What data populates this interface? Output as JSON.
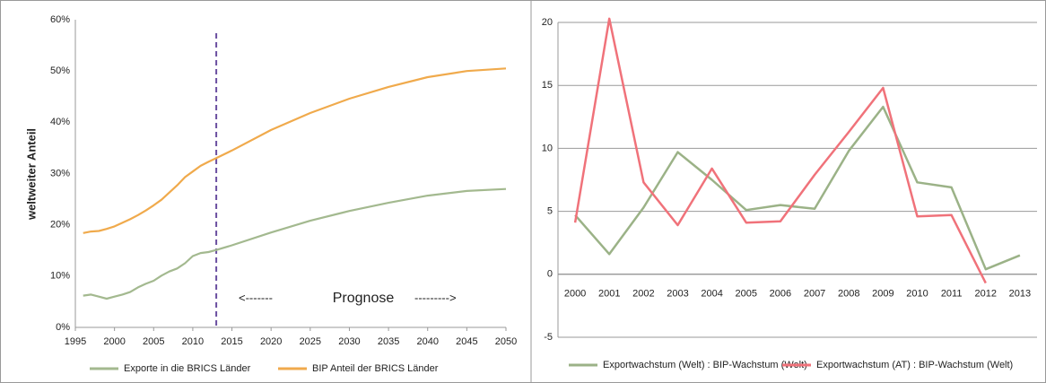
{
  "chart_data": [
    {
      "type": "line",
      "y_label": "weltweiter Anteil",
      "x": [
        1996,
        1997,
        1998,
        1999,
        2000,
        2001,
        2002,
        2003,
        2004,
        2005,
        2006,
        2007,
        2008,
        2009,
        2010,
        2011,
        2012,
        2013,
        2015,
        2020,
        2025,
        2030,
        2035,
        2040,
        2045,
        2050
      ],
      "series": [
        {
          "name": "Exporte in die BRICS Länder",
          "color": "#a3b98f",
          "values": [
            6.2,
            6.4,
            6.0,
            5.6,
            6.0,
            6.4,
            6.9,
            7.8,
            8.5,
            9.1,
            10.1,
            10.9,
            11.5,
            12.5,
            13.9,
            14.5,
            14.7,
            15.1,
            16.0,
            18.5,
            20.8,
            22.7,
            24.3,
            25.7,
            26.6,
            27.0
          ]
        },
        {
          "name": "BIP Anteil der BRICS Länder",
          "color": "#f0aa4c",
          "values": [
            18.4,
            18.7,
            18.8,
            19.2,
            19.7,
            20.4,
            21.1,
            21.9,
            22.8,
            23.8,
            24.9,
            26.3,
            27.7,
            29.3,
            30.4,
            31.5,
            32.3,
            33.0,
            34.5,
            38.5,
            41.8,
            44.6,
            46.9,
            48.8,
            50.0,
            50.5
          ]
        }
      ],
      "xlim": [
        1995,
        2050
      ],
      "xticks": [
        1995,
        2000,
        2005,
        2010,
        2015,
        2020,
        2025,
        2030,
        2035,
        2040,
        2045,
        2050
      ],
      "ylim": [
        0,
        60
      ],
      "yticks": [
        {
          "value": 0,
          "label": "0%"
        },
        {
          "value": 10,
          "label": "10%"
        },
        {
          "value": 20,
          "label": "20%"
        },
        {
          "value": 30,
          "label": "30%"
        },
        {
          "value": 40,
          "label": "40%"
        },
        {
          "value": 50,
          "label": "50%"
        },
        {
          "value": 60,
          "label": "60%"
        }
      ],
      "vline": 2013,
      "annotations": [
        "<-------",
        "Prognose",
        "--------->"
      ],
      "grid": false,
      "legend": "bottom"
    },
    {
      "type": "line",
      "categories": [
        "2000",
        "2001",
        "2002",
        "2003",
        "2004",
        "2005",
        "2006",
        "2007",
        "2008",
        "2009",
        "2010",
        "2011",
        "2012",
        "2013"
      ],
      "series": [
        {
          "name": "Exportwachstum (Welt) : BIP-Wachstum (Welt)",
          "color": "#9bb287",
          "values": [
            4.7,
            1.6,
            5.3,
            9.7,
            7.5,
            5.1,
            5.5,
            5.2,
            9.8,
            13.3,
            7.3,
            6.9,
            0.4,
            1.5
          ]
        },
        {
          "name": "Exportwachstum (AT) : BIP-Wachstum (Welt)",
          "color": "#f0727a",
          "values": [
            4.1,
            20.3,
            7.3,
            3.9,
            8.4,
            4.1,
            4.2,
            7.9,
            11.3,
            14.8,
            4.6,
            4.7,
            -0.7,
            null
          ]
        }
      ],
      "ylim": [
        -5,
        20
      ],
      "yticks": [
        -5,
        0,
        5,
        10,
        15,
        20
      ],
      "grid": true,
      "legend": "bottom"
    }
  ]
}
